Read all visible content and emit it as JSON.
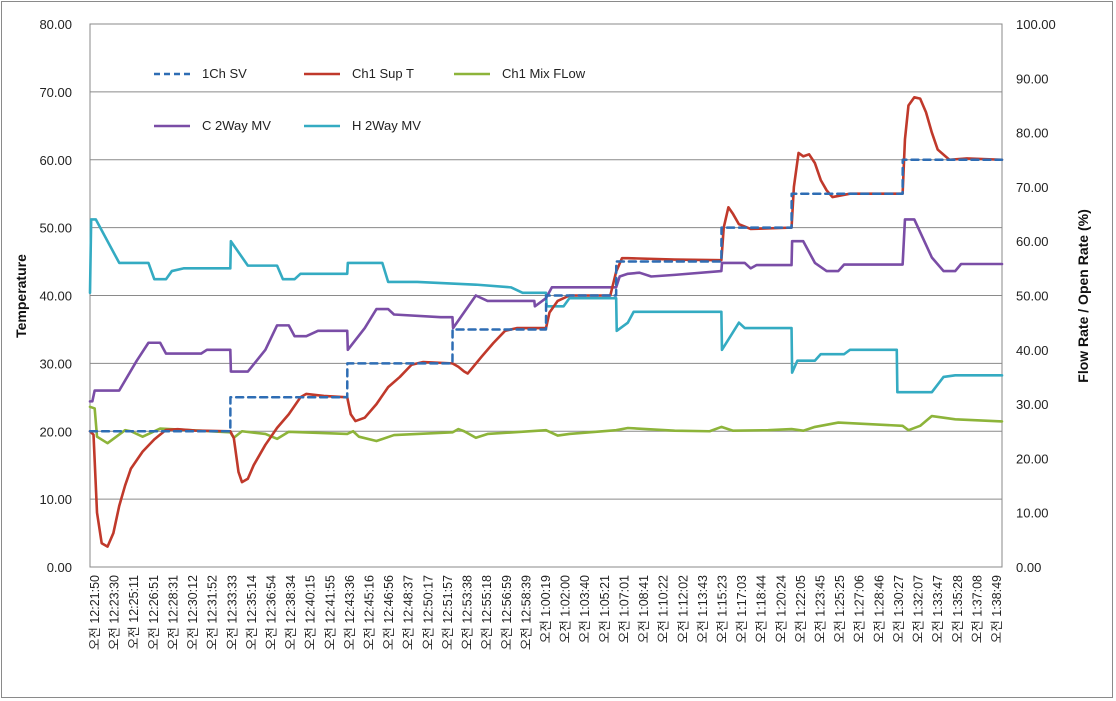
{
  "chart_data": {
    "type": "line",
    "title": "",
    "ylabel": "Temperature",
    "y2label": "Flow Rate / Open Rate (%)",
    "ylim": [
      0,
      80
    ],
    "y2lim": [
      0,
      100
    ],
    "yticks": [
      "0.00",
      "10.00",
      "20.00",
      "30.00",
      "40.00",
      "50.00",
      "60.00",
      "70.00",
      "80.00"
    ],
    "y2ticks": [
      "0.00",
      "10.00",
      "20.00",
      "30.00",
      "40.00",
      "50.00",
      "60.00",
      "70.00",
      "80.00",
      "90.00",
      "100.00"
    ],
    "x_prefix": "오전",
    "xrange_minutes": [
      0,
      78
    ],
    "x_tick_labels": [
      "12:21:50",
      "12:23:30",
      "12:25:11",
      "12:26:51",
      "12:28:31",
      "12:30:12",
      "12:31:52",
      "12:33:33",
      "12:35:14",
      "12:36:54",
      "12:38:34",
      "12:40:15",
      "12:41:55",
      "12:43:36",
      "12:45:16",
      "12:46:56",
      "12:48:37",
      "12:50:17",
      "12:51:57",
      "12:53:38",
      "12:55:18",
      "12:56:59",
      "12:58:39",
      "1:00:19",
      "1:02:00",
      "1:03:40",
      "1:05:21",
      "1:07:01",
      "1:08:41",
      "1:10:22",
      "1:12:02",
      "1:13:43",
      "1:15:23",
      "1:17:03",
      "1:18:44",
      "1:20:24",
      "1:22:05",
      "1:23:45",
      "1:25:25",
      "1:27:06",
      "1:28:46",
      "1:30:27",
      "1:32:07",
      "1:33:47",
      "1:35:28",
      "1:37:08",
      "1:38:49"
    ],
    "legend": [
      "1Ch SV",
      "Ch1 Sup T",
      "Ch1 Mix FLow",
      "C 2Way MV",
      "H 2Way MV"
    ],
    "series": [
      {
        "name": "1Ch SV",
        "axis": "left",
        "color": "#2e6db4",
        "dash": true,
        "points": [
          [
            0,
            20
          ],
          [
            12,
            20
          ],
          [
            12.01,
            25
          ],
          [
            22,
            25
          ],
          [
            22.01,
            30
          ],
          [
            31,
            30
          ],
          [
            31.01,
            35
          ],
          [
            39,
            35
          ],
          [
            39.01,
            40
          ],
          [
            45,
            40
          ],
          [
            45.01,
            45
          ],
          [
            54,
            45
          ],
          [
            54.01,
            50
          ],
          [
            60,
            50
          ],
          [
            60.01,
            55
          ],
          [
            69.5,
            55
          ],
          [
            69.51,
            60
          ],
          [
            78,
            60
          ]
        ]
      },
      {
        "name": "Ch1 Sup T",
        "axis": "left",
        "color": "#c0392b",
        "dash": false,
        "points": [
          [
            0,
            20
          ],
          [
            0.3,
            19.5
          ],
          [
            0.6,
            8
          ],
          [
            1,
            3.5
          ],
          [
            1.5,
            3
          ],
          [
            2,
            5
          ],
          [
            2.5,
            9
          ],
          [
            3,
            12
          ],
          [
            3.5,
            14.5
          ],
          [
            4.5,
            17
          ],
          [
            5.5,
            18.8
          ],
          [
            6.5,
            20.2
          ],
          [
            7.5,
            20.3
          ],
          [
            9,
            20.1
          ],
          [
            12,
            20
          ],
          [
            12.3,
            19
          ],
          [
            12.7,
            14
          ],
          [
            13,
            12.5
          ],
          [
            13.5,
            13
          ],
          [
            14,
            15
          ],
          [
            15,
            18
          ],
          [
            16,
            20.5
          ],
          [
            17,
            22.5
          ],
          [
            18,
            25
          ],
          [
            18.5,
            25.5
          ],
          [
            20,
            25.2
          ],
          [
            22,
            25
          ],
          [
            22.3,
            22.5
          ],
          [
            22.7,
            21.5
          ],
          [
            23.5,
            22
          ],
          [
            24.5,
            24
          ],
          [
            25.5,
            26.5
          ],
          [
            26.5,
            28
          ],
          [
            27.5,
            29.8
          ],
          [
            28.5,
            30.2
          ],
          [
            31,
            30
          ],
          [
            31.5,
            29.5
          ],
          [
            32,
            28.8
          ],
          [
            32.3,
            28.5
          ],
          [
            33.5,
            31
          ],
          [
            34.5,
            33
          ],
          [
            35.5,
            34.8
          ],
          [
            36.5,
            35.2
          ],
          [
            39,
            35.2
          ],
          [
            39.3,
            37.5
          ],
          [
            40,
            39.2
          ],
          [
            41,
            40
          ],
          [
            44.5,
            40
          ],
          [
            45,
            43.5
          ],
          [
            45.5,
            45.5
          ],
          [
            46,
            45.5
          ],
          [
            50,
            45.3
          ],
          [
            54,
            45.2
          ],
          [
            54.2,
            50
          ],
          [
            54.6,
            53
          ],
          [
            55,
            52
          ],
          [
            55.5,
            50.5
          ],
          [
            56.5,
            49.8
          ],
          [
            60,
            50
          ],
          [
            60.2,
            56
          ],
          [
            60.6,
            61
          ],
          [
            61,
            60.5
          ],
          [
            61.5,
            60.8
          ],
          [
            62,
            59.5
          ],
          [
            62.5,
            57
          ],
          [
            63,
            55.5
          ],
          [
            63.5,
            54.5
          ],
          [
            65,
            55
          ],
          [
            69.5,
            55
          ],
          [
            69.7,
            63
          ],
          [
            70,
            68
          ],
          [
            70.5,
            69.2
          ],
          [
            71,
            69
          ],
          [
            71.5,
            67
          ],
          [
            72,
            64
          ],
          [
            72.5,
            61.5
          ],
          [
            73.5,
            60
          ],
          [
            75,
            60.2
          ],
          [
            78,
            60
          ]
        ]
      },
      {
        "name": "Ch1 Mix FLow",
        "axis": "right",
        "color": "#8db43a",
        "dash": false,
        "points": [
          [
            0,
            29.5
          ],
          [
            0.4,
            29.2
          ],
          [
            0.6,
            24
          ],
          [
            1.5,
            22.8
          ],
          [
            3,
            25.2
          ],
          [
            3.5,
            25
          ],
          [
            4.5,
            24
          ],
          [
            6,
            25.5
          ],
          [
            12,
            24.8
          ],
          [
            12.3,
            23.8
          ],
          [
            13,
            25
          ],
          [
            15,
            24.5
          ],
          [
            16,
            23.6
          ],
          [
            17,
            24.9
          ],
          [
            22,
            24.5
          ],
          [
            22.5,
            25
          ],
          [
            23,
            24
          ],
          [
            24.5,
            23.2
          ],
          [
            26,
            24.3
          ],
          [
            31,
            24.8
          ],
          [
            31.5,
            25.4
          ],
          [
            32,
            25
          ],
          [
            33,
            23.8
          ],
          [
            34,
            24.5
          ],
          [
            39,
            25.2
          ],
          [
            40,
            24.2
          ],
          [
            41,
            24.5
          ],
          [
            45,
            25.2
          ],
          [
            46,
            25.6
          ],
          [
            50,
            25.1
          ],
          [
            53,
            25
          ],
          [
            54,
            25.8
          ],
          [
            55,
            25.1
          ],
          [
            58,
            25.2
          ],
          [
            60,
            25.4
          ],
          [
            61,
            25.1
          ],
          [
            62,
            25.8
          ],
          [
            64,
            26.6
          ],
          [
            69.5,
            26
          ],
          [
            70,
            25.2
          ],
          [
            71,
            26
          ],
          [
            72,
            27.8
          ],
          [
            74,
            27.2
          ],
          [
            78,
            26.8
          ]
        ]
      },
      {
        "name": "C 2Way MV",
        "axis": "right",
        "color": "#7a4da6",
        "dash": false,
        "points": [
          [
            0,
            30.5
          ],
          [
            0.2,
            30.5
          ],
          [
            0.4,
            32.5
          ],
          [
            2.5,
            32.5
          ],
          [
            4,
            38
          ],
          [
            5,
            41.3
          ],
          [
            6,
            41.3
          ],
          [
            6.5,
            39.3
          ],
          [
            9.5,
            39.3
          ],
          [
            10,
            40
          ],
          [
            12,
            40
          ],
          [
            12.05,
            36
          ],
          [
            13.5,
            36
          ],
          [
            15,
            40
          ],
          [
            16,
            44.5
          ],
          [
            17,
            44.5
          ],
          [
            17.5,
            42.5
          ],
          [
            18.5,
            42.5
          ],
          [
            19.5,
            43.5
          ],
          [
            22,
            43.5
          ],
          [
            22.05,
            40
          ],
          [
            23.5,
            44
          ],
          [
            24.5,
            47.5
          ],
          [
            25.5,
            47.5
          ],
          [
            26,
            46.5
          ],
          [
            30,
            46
          ],
          [
            31,
            46
          ],
          [
            31.05,
            44
          ],
          [
            33,
            50
          ],
          [
            34,
            49
          ],
          [
            38,
            49
          ],
          [
            38.05,
            48
          ],
          [
            39,
            49.5
          ],
          [
            39.5,
            51.5
          ],
          [
            45,
            51.5
          ],
          [
            45.3,
            53.5
          ],
          [
            46,
            54
          ],
          [
            47,
            54.2
          ],
          [
            48,
            53.5
          ],
          [
            50,
            53.8
          ],
          [
            54,
            54.5
          ],
          [
            54.05,
            56
          ],
          [
            56,
            56
          ],
          [
            56.5,
            55
          ],
          [
            57,
            55.6
          ],
          [
            60,
            55.6
          ],
          [
            60.05,
            60
          ],
          [
            61,
            60
          ],
          [
            62,
            56
          ],
          [
            63,
            54.5
          ],
          [
            64,
            54.5
          ],
          [
            64.5,
            55.7
          ],
          [
            69.5,
            55.7
          ],
          [
            69.7,
            64
          ],
          [
            70.5,
            64
          ],
          [
            72,
            57
          ],
          [
            73,
            54.5
          ],
          [
            74,
            54.5
          ],
          [
            74.5,
            55.8
          ],
          [
            78,
            55.8
          ]
        ]
      },
      {
        "name": "H 2Way MV",
        "axis": "right",
        "color": "#34abc2",
        "dash": false,
        "points": [
          [
            0,
            50.5
          ],
          [
            0.1,
            64
          ],
          [
            0.5,
            64
          ],
          [
            2.5,
            56
          ],
          [
            5,
            56
          ],
          [
            5.5,
            53
          ],
          [
            6.5,
            53
          ],
          [
            7,
            54.5
          ],
          [
            8,
            55
          ],
          [
            12,
            55
          ],
          [
            12.05,
            60
          ],
          [
            13.5,
            55.5
          ],
          [
            16,
            55.5
          ],
          [
            16.5,
            53
          ],
          [
            17.5,
            53
          ],
          [
            18,
            54
          ],
          [
            22,
            54
          ],
          [
            22.05,
            56
          ],
          [
            25,
            56
          ],
          [
            25.5,
            52.5
          ],
          [
            28,
            52.5
          ],
          [
            33,
            52
          ],
          [
            36,
            51.5
          ],
          [
            37,
            50.5
          ],
          [
            39,
            50.5
          ],
          [
            39.05,
            48
          ],
          [
            40.5,
            48
          ],
          [
            41,
            49.5
          ],
          [
            45,
            49.5
          ],
          [
            45.05,
            43.5
          ],
          [
            46,
            45
          ],
          [
            46.5,
            47
          ],
          [
            54,
            47
          ],
          [
            54.05,
            40
          ],
          [
            55.5,
            45
          ],
          [
            56,
            44
          ],
          [
            60,
            44
          ],
          [
            60.05,
            35.8
          ],
          [
            60.5,
            38
          ],
          [
            62,
            38
          ],
          [
            62.5,
            39.2
          ],
          [
            64.5,
            39.2
          ],
          [
            65,
            40
          ],
          [
            69,
            40
          ],
          [
            69.05,
            32.2
          ],
          [
            72,
            32.2
          ],
          [
            73,
            35
          ],
          [
            74,
            35.3
          ],
          [
            78,
            35.3
          ]
        ]
      }
    ]
  }
}
